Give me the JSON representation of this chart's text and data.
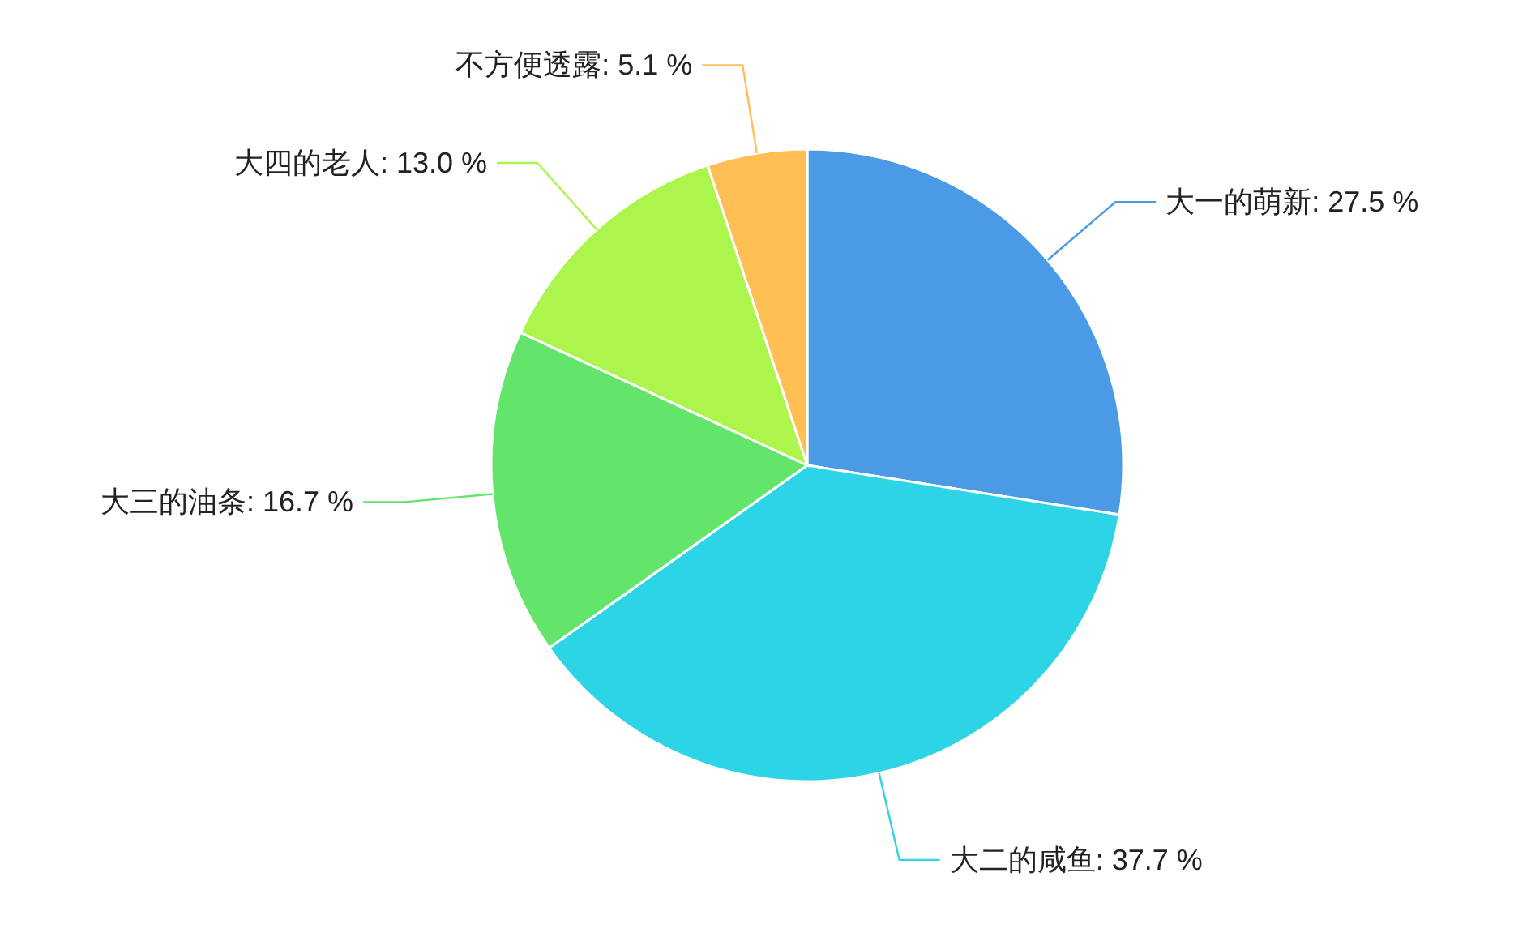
{
  "chart_data": {
    "type": "pie",
    "categories": [
      "大一的萌新",
      "大二的咸鱼",
      "大三的油条",
      "大四的老人",
      "不方便透露"
    ],
    "values": [
      27.5,
      37.7,
      16.7,
      13.0,
      5.1
    ],
    "value_labels": [
      "27.5 %",
      "37.7 %",
      "16.7 %",
      "13.0 %",
      "5.1 %"
    ],
    "colors": [
      "#4a9ae6",
      "#2dd4e6",
      "#62e56a",
      "#acf54c",
      "#ffbf54"
    ]
  }
}
